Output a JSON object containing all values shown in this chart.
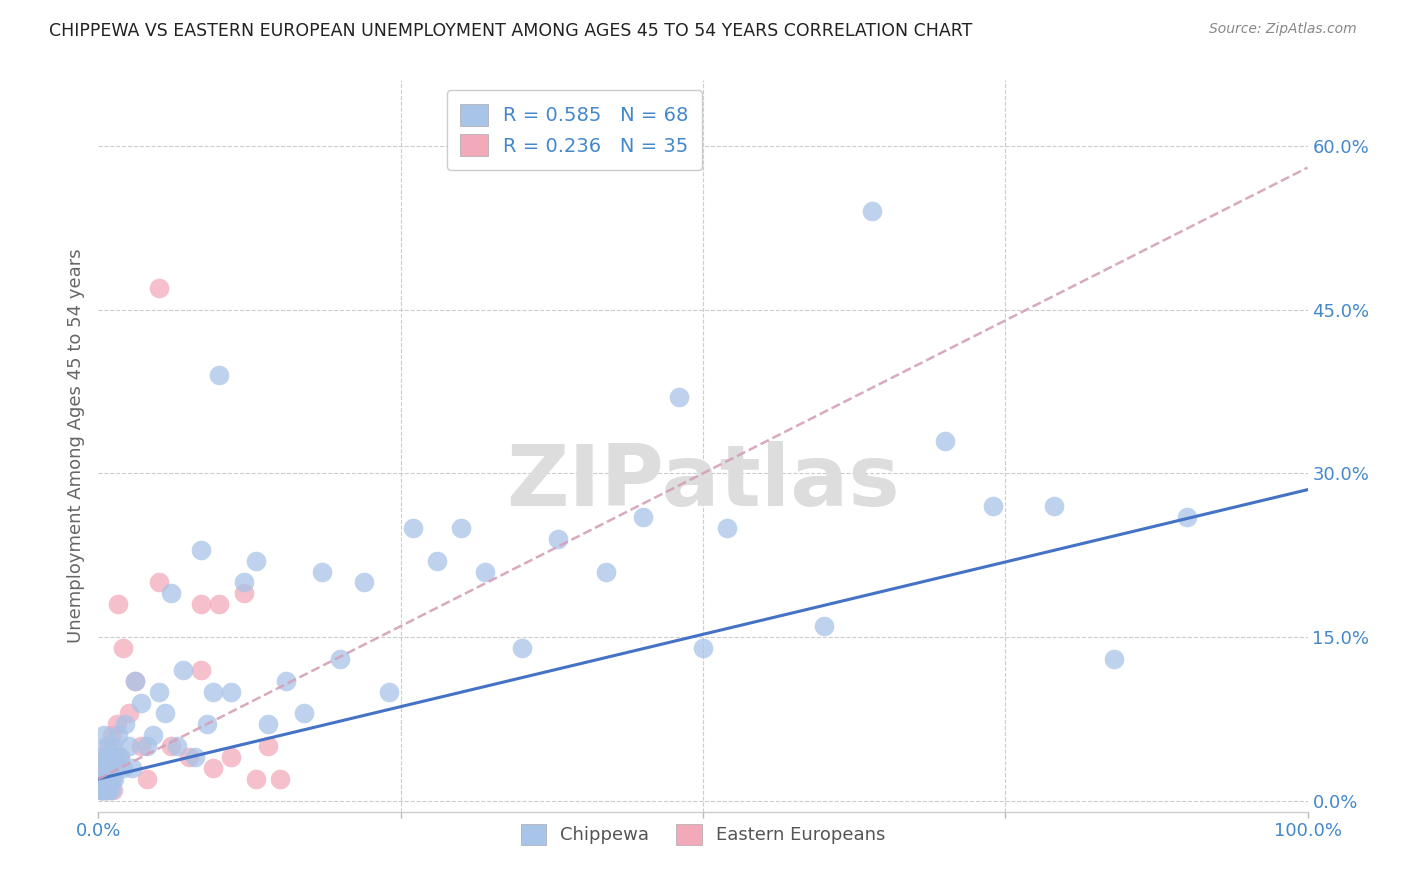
{
  "title": "CHIPPEWA VS EASTERN EUROPEAN UNEMPLOYMENT AMONG AGES 45 TO 54 YEARS CORRELATION CHART",
  "source": "Source: ZipAtlas.com",
  "ylabel": "Unemployment Among Ages 45 to 54 years",
  "yticks": [
    "0.0%",
    "15.0%",
    "30.0%",
    "45.0%",
    "60.0%"
  ],
  "ytick_vals": [
    0.0,
    0.15,
    0.3,
    0.45,
    0.6
  ],
  "xlim": [
    0.0,
    1.0
  ],
  "ylim": [
    -0.01,
    0.66
  ],
  "chippewa_color": "#a8c4e8",
  "eastern_color": "#f2aabb",
  "chippewa_line_color": "#4472c4",
  "eastern_line_color": "#d4a0b8",
  "legend_color": "#4488cc",
  "watermark": "ZIPatlas",
  "chippewa_R": "0.585",
  "chippewa_N": "68",
  "eastern_R": "0.236",
  "eastern_N": "35",
  "chippewa_line_x0": 0.0,
  "chippewa_line_y0": 0.02,
  "chippewa_line_x1": 1.0,
  "chippewa_line_y1": 0.285,
  "eastern_line_x0": 0.0,
  "eastern_line_y0": 0.02,
  "eastern_line_x1": 1.0,
  "eastern_line_y1": 0.58,
  "chippewa_x": [
    0.002,
    0.003,
    0.003,
    0.004,
    0.005,
    0.005,
    0.006,
    0.006,
    0.007,
    0.007,
    0.008,
    0.008,
    0.009,
    0.01,
    0.01,
    0.011,
    0.012,
    0.013,
    0.014,
    0.015,
    0.016,
    0.018,
    0.02,
    0.022,
    0.025,
    0.028,
    0.03,
    0.035,
    0.04,
    0.045,
    0.05,
    0.055,
    0.06,
    0.065,
    0.07,
    0.08,
    0.085,
    0.09,
    0.095,
    0.1,
    0.11,
    0.12,
    0.13,
    0.14,
    0.155,
    0.17,
    0.185,
    0.2,
    0.22,
    0.24,
    0.26,
    0.28,
    0.3,
    0.32,
    0.35,
    0.38,
    0.42,
    0.45,
    0.48,
    0.5,
    0.52,
    0.6,
    0.64,
    0.7,
    0.74,
    0.79,
    0.84,
    0.9
  ],
  "chippewa_y": [
    0.01,
    0.02,
    0.04,
    0.01,
    0.03,
    0.06,
    0.01,
    0.04,
    0.02,
    0.05,
    0.01,
    0.03,
    0.02,
    0.01,
    0.04,
    0.02,
    0.05,
    0.02,
    0.03,
    0.04,
    0.06,
    0.04,
    0.03,
    0.07,
    0.05,
    0.03,
    0.11,
    0.09,
    0.05,
    0.06,
    0.1,
    0.08,
    0.19,
    0.05,
    0.12,
    0.04,
    0.23,
    0.07,
    0.1,
    0.39,
    0.1,
    0.2,
    0.22,
    0.07,
    0.11,
    0.08,
    0.21,
    0.13,
    0.2,
    0.1,
    0.25,
    0.22,
    0.25,
    0.21,
    0.14,
    0.24,
    0.21,
    0.26,
    0.37,
    0.14,
    0.25,
    0.16,
    0.54,
    0.33,
    0.27,
    0.27,
    0.13,
    0.26
  ],
  "eastern_x": [
    0.002,
    0.003,
    0.004,
    0.005,
    0.005,
    0.006,
    0.006,
    0.007,
    0.008,
    0.009,
    0.01,
    0.011,
    0.012,
    0.013,
    0.015,
    0.016,
    0.018,
    0.02,
    0.025,
    0.03,
    0.035,
    0.04,
    0.05,
    0.06,
    0.075,
    0.085,
    0.095,
    0.1,
    0.11,
    0.12,
    0.13,
    0.14,
    0.15,
    0.05,
    0.085
  ],
  "eastern_y": [
    0.01,
    0.01,
    0.02,
    0.01,
    0.03,
    0.02,
    0.04,
    0.01,
    0.03,
    0.05,
    0.02,
    0.06,
    0.01,
    0.04,
    0.07,
    0.18,
    0.04,
    0.14,
    0.08,
    0.11,
    0.05,
    0.02,
    0.2,
    0.05,
    0.04,
    0.12,
    0.03,
    0.18,
    0.04,
    0.19,
    0.02,
    0.05,
    0.02,
    0.47,
    0.18
  ]
}
